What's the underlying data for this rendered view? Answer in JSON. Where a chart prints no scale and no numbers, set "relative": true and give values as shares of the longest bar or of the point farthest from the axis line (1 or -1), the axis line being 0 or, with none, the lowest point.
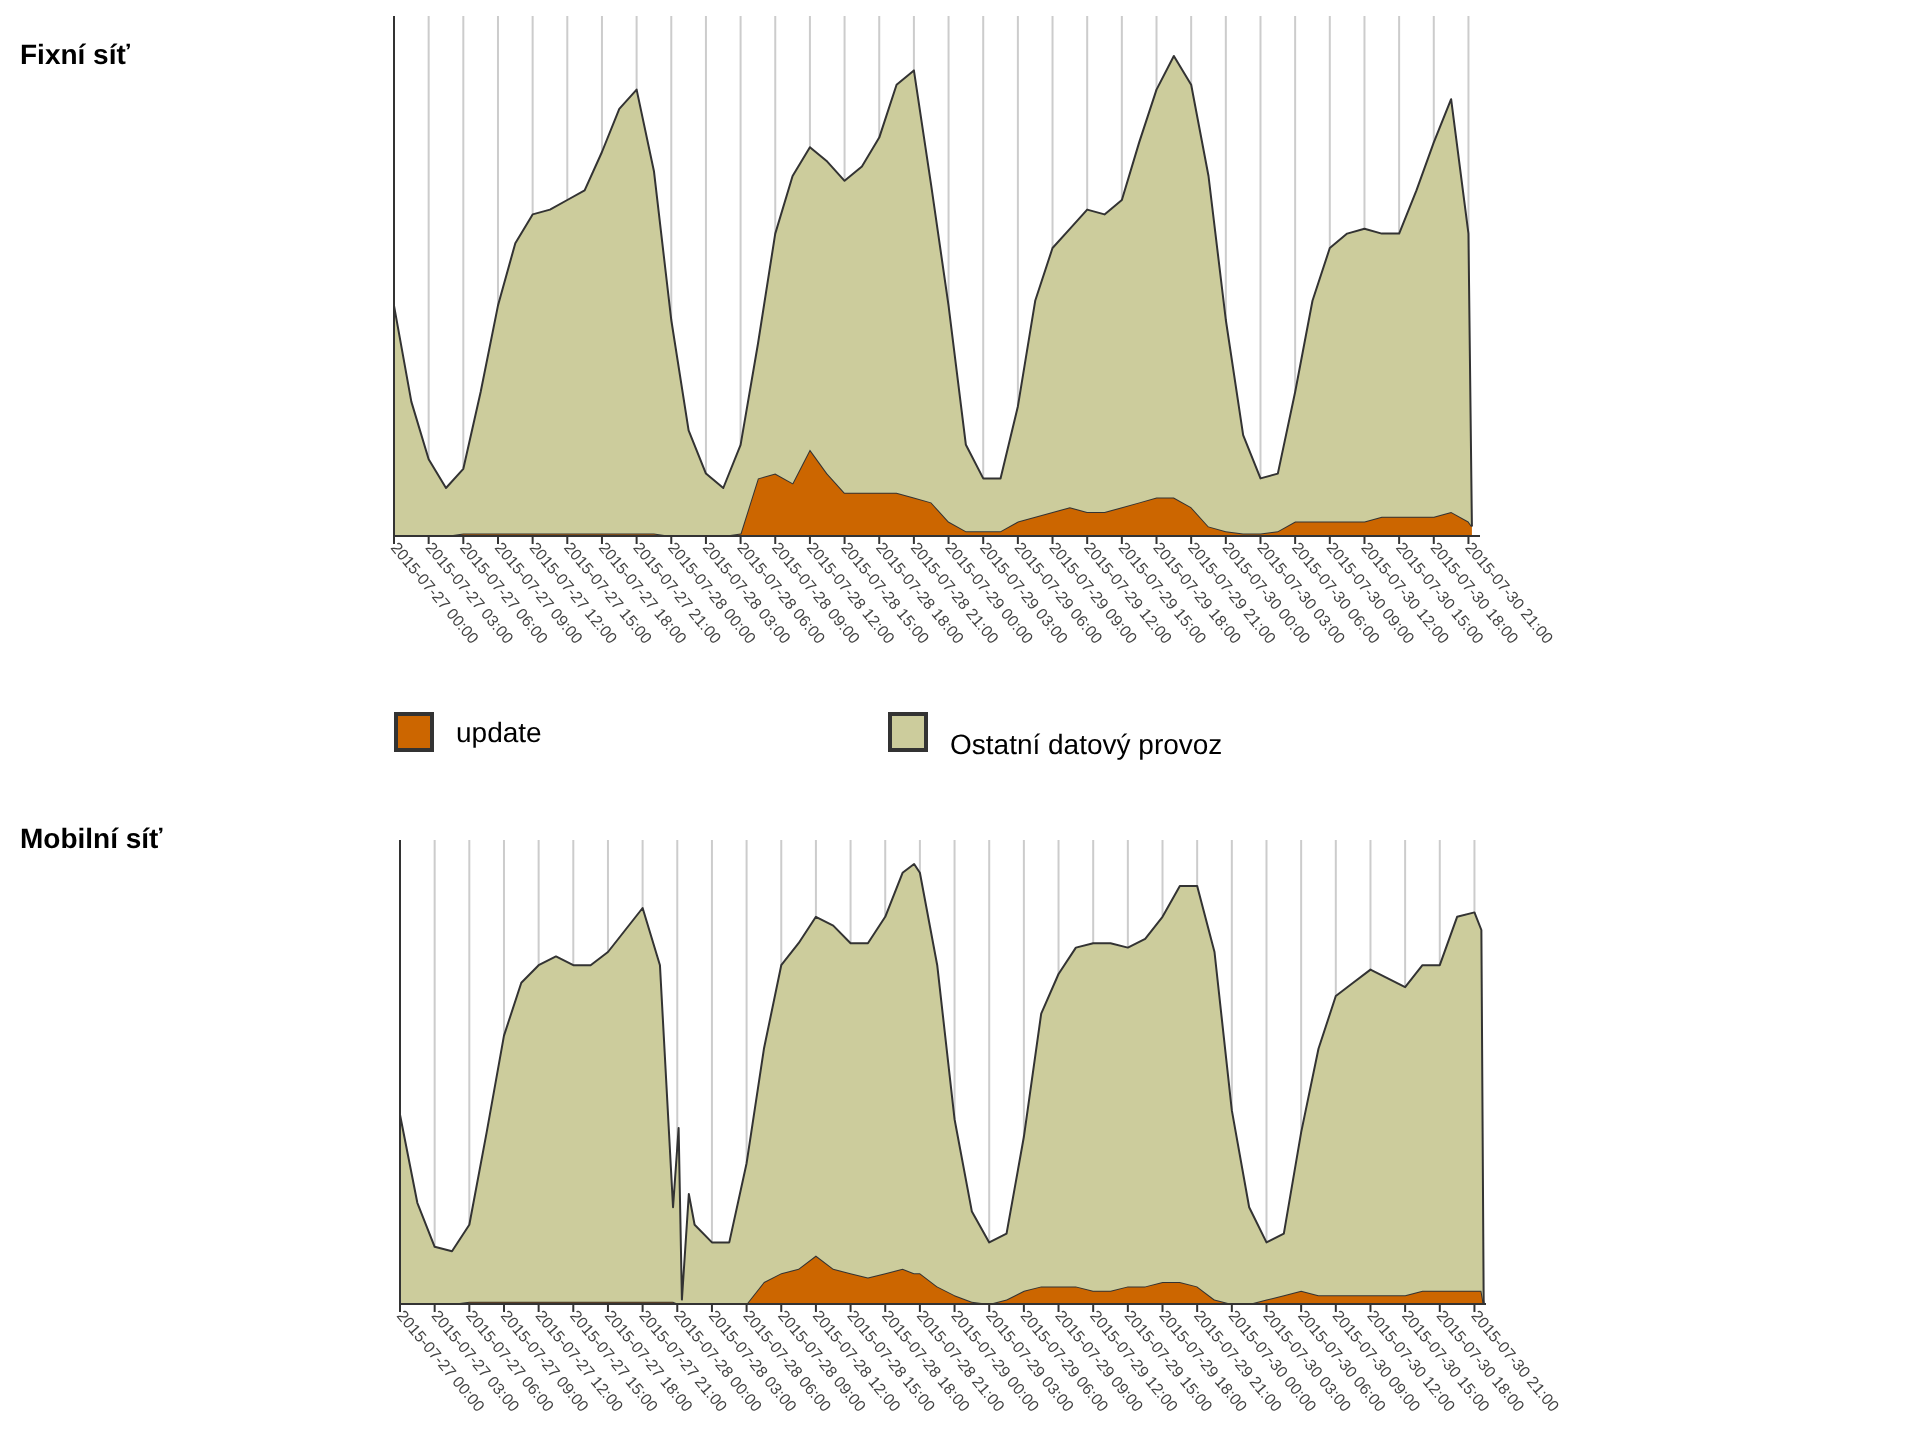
{
  "chart_data": [
    {
      "type": "area",
      "annotations": [
        "Fixní síť"
      ],
      "relative": true,
      "stacked": true,
      "grid": "x",
      "legend": "bottom",
      "xlim": [
        "2015-07-27T00:00",
        "2015-07-30T22:00"
      ],
      "xticks": [
        {
          "value": "2015-07-27T00:00",
          "label": "2015-07-27 00:00"
        },
        {
          "value": "2015-07-27T03:00",
          "label": "2015-07-27 03:00"
        },
        {
          "value": "2015-07-27T06:00",
          "label": "2015-07-27 06:00"
        },
        {
          "value": "2015-07-27T09:00",
          "label": "2015-07-27 09:00"
        },
        {
          "value": "2015-07-27T12:00",
          "label": "2015-07-27 12:00"
        },
        {
          "value": "2015-07-27T15:00",
          "label": "2015-07-27 15:00"
        },
        {
          "value": "2015-07-27T18:00",
          "label": "2015-07-27 18:00"
        },
        {
          "value": "2015-07-27T21:00",
          "label": "2015-07-27 21:00"
        },
        {
          "value": "2015-07-28T00:00",
          "label": "2015-07-28 00:00"
        },
        {
          "value": "2015-07-28T03:00",
          "label": "2015-07-28 03:00"
        },
        {
          "value": "2015-07-28T06:00",
          "label": "2015-07-28 06:00"
        },
        {
          "value": "2015-07-28T09:00",
          "label": "2015-07-28 09:00"
        },
        {
          "value": "2015-07-28T12:00",
          "label": "2015-07-28 12:00"
        },
        {
          "value": "2015-07-28T15:00",
          "label": "2015-07-28 15:00"
        },
        {
          "value": "2015-07-28T18:00",
          "label": "2015-07-28 18:00"
        },
        {
          "value": "2015-07-28T21:00",
          "label": "2015-07-28 21:00"
        },
        {
          "value": "2015-07-29T00:00",
          "label": "2015-07-29 00:00"
        },
        {
          "value": "2015-07-29T03:00",
          "label": "2015-07-29 03:00"
        },
        {
          "value": "2015-07-29T06:00",
          "label": "2015-07-29 06:00"
        },
        {
          "value": "2015-07-29T09:00",
          "label": "2015-07-29 09:00"
        },
        {
          "value": "2015-07-29T12:00",
          "label": "2015-07-29 12:00"
        },
        {
          "value": "2015-07-29T15:00",
          "label": "2015-07-29 15:00"
        },
        {
          "value": "2015-07-29T18:00",
          "label": "2015-07-29 18:00"
        },
        {
          "value": "2015-07-29T21:00",
          "label": "2015-07-29 21:00"
        },
        {
          "value": "2015-07-30T00:00",
          "label": "2015-07-30 00:00"
        },
        {
          "value": "2015-07-30T03:00",
          "label": "2015-07-30 03:00"
        },
        {
          "value": "2015-07-30T06:00",
          "label": "2015-07-30 06:00"
        },
        {
          "value": "2015-07-30T09:00",
          "label": "2015-07-30 09:00"
        },
        {
          "value": "2015-07-30T12:00",
          "label": "2015-07-30 12:00"
        },
        {
          "value": "2015-07-30T15:00",
          "label": "2015-07-30 15:00"
        },
        {
          "value": "2015-07-30T18:00",
          "label": "2015-07-30 18:00"
        },
        {
          "value": "2015-07-30T21:00",
          "label": "2015-07-30 21:00"
        }
      ],
      "x": [
        "2015-07-27T00:00",
        "2015-07-27T01:30",
        "2015-07-27T03:00",
        "2015-07-27T04:30",
        "2015-07-27T06:00",
        "2015-07-27T07:30",
        "2015-07-27T09:00",
        "2015-07-27T10:30",
        "2015-07-27T12:00",
        "2015-07-27T13:30",
        "2015-07-27T15:00",
        "2015-07-27T16:30",
        "2015-07-27T18:00",
        "2015-07-27T19:30",
        "2015-07-27T21:00",
        "2015-07-27T22:30",
        "2015-07-28T00:00",
        "2015-07-28T01:30",
        "2015-07-28T03:00",
        "2015-07-28T04:30",
        "2015-07-28T06:00",
        "2015-07-28T07:30",
        "2015-07-28T09:00",
        "2015-07-28T10:30",
        "2015-07-28T12:00",
        "2015-07-28T13:30",
        "2015-07-28T15:00",
        "2015-07-28T16:30",
        "2015-07-28T18:00",
        "2015-07-28T19:30",
        "2015-07-28T21:00",
        "2015-07-28T22:30",
        "2015-07-29T00:00",
        "2015-07-29T01:30",
        "2015-07-29T03:00",
        "2015-07-29T04:30",
        "2015-07-29T06:00",
        "2015-07-29T07:30",
        "2015-07-29T09:00",
        "2015-07-29T10:30",
        "2015-07-29T12:00",
        "2015-07-29T13:30",
        "2015-07-29T15:00",
        "2015-07-29T16:30",
        "2015-07-29T18:00",
        "2015-07-29T19:30",
        "2015-07-29T21:00",
        "2015-07-29T22:30",
        "2015-07-30T00:00",
        "2015-07-30T01:30",
        "2015-07-30T03:00",
        "2015-07-30T04:30",
        "2015-07-30T06:00",
        "2015-07-30T07:30",
        "2015-07-30T09:00",
        "2015-07-30T10:30",
        "2015-07-30T12:00",
        "2015-07-30T13:30",
        "2015-07-30T15:00",
        "2015-07-30T16:30",
        "2015-07-30T18:00",
        "2015-07-30T19:30",
        "2015-07-30T21:00",
        "2015-07-30T21:18"
      ],
      "series": [
        {
          "name": "update",
          "color": "#cc6600",
          "values": [
            0,
            0,
            0,
            0,
            0.005,
            0.005,
            0.005,
            0.005,
            0.005,
            0.005,
            0.005,
            0.005,
            0.005,
            0.005,
            0.005,
            0.005,
            0,
            0,
            0,
            0,
            0.005,
            0.12,
            0.13,
            0.11,
            0.18,
            0.13,
            0.09,
            0.09,
            0.09,
            0.09,
            0.08,
            0.07,
            0.03,
            0.01,
            0.01,
            0.01,
            0.03,
            0.04,
            0.05,
            0.06,
            0.05,
            0.05,
            0.06,
            0.07,
            0.08,
            0.08,
            0.06,
            0.02,
            0.01,
            0.005,
            0.005,
            0.01,
            0.03,
            0.03,
            0.03,
            0.03,
            0.03,
            0.04,
            0.04,
            0.04,
            0.04,
            0.05,
            0.03,
            0.02
          ]
        },
        {
          "name": "Ostatní datový provoz",
          "color": "#cccc9c",
          "values": [
            0.48,
            0.28,
            0.16,
            0.1,
            0.135,
            0.295,
            0.475,
            0.605,
            0.665,
            0.675,
            0.695,
            0.715,
            0.795,
            0.885,
            0.925,
            0.755,
            0.45,
            0.22,
            0.13,
            0.1,
            0.185,
            0.28,
            0.5,
            0.64,
            0.63,
            0.65,
            0.65,
            0.68,
            0.74,
            0.85,
            0.89,
            0.66,
            0.45,
            0.18,
            0.11,
            0.11,
            0.24,
            0.45,
            0.55,
            0.58,
            0.63,
            0.62,
            0.64,
            0.75,
            0.85,
            0.92,
            0.88,
            0.73,
            0.44,
            0.205,
            0.115,
            0.12,
            0.27,
            0.46,
            0.57,
            0.6,
            0.61,
            0.59,
            0.59,
            0.68,
            0.78,
            0.86,
            0.6,
            0
          ]
        }
      ]
    },
    {
      "type": "area",
      "annotations": [
        "Mobilní síť"
      ],
      "relative": true,
      "stacked": true,
      "grid": "x",
      "xlim": [
        "2015-07-27T00:00",
        "2015-07-30T22:00"
      ],
      "xticks": [
        {
          "value": "2015-07-27T00:00",
          "label": "2015-07-27 00:00"
        },
        {
          "value": "2015-07-27T03:00",
          "label": "2015-07-27 03:00"
        },
        {
          "value": "2015-07-27T06:00",
          "label": "2015-07-27 06:00"
        },
        {
          "value": "2015-07-27T09:00",
          "label": "2015-07-27 09:00"
        },
        {
          "value": "2015-07-27T12:00",
          "label": "2015-07-27 12:00"
        },
        {
          "value": "2015-07-27T15:00",
          "label": "2015-07-27 15:00"
        },
        {
          "value": "2015-07-27T18:00",
          "label": "2015-07-27 18:00"
        },
        {
          "value": "2015-07-27T21:00",
          "label": "2015-07-27 21:00"
        },
        {
          "value": "2015-07-28T00:00",
          "label": "2015-07-28 00:00"
        },
        {
          "value": "2015-07-28T03:00",
          "label": "2015-07-28 03:00"
        },
        {
          "value": "2015-07-28T06:00",
          "label": "2015-07-28 06:00"
        },
        {
          "value": "2015-07-28T09:00",
          "label": "2015-07-28 09:00"
        },
        {
          "value": "2015-07-28T12:00",
          "label": "2015-07-28 12:00"
        },
        {
          "value": "2015-07-28T15:00",
          "label": "2015-07-28 15:00"
        },
        {
          "value": "2015-07-28T18:00",
          "label": "2015-07-28 18:00"
        },
        {
          "value": "2015-07-28T21:00",
          "label": "2015-07-28 21:00"
        },
        {
          "value": "2015-07-29T00:00",
          "label": "2015-07-29 00:00"
        },
        {
          "value": "2015-07-29T03:00",
          "label": "2015-07-29 03:00"
        },
        {
          "value": "2015-07-29T06:00",
          "label": "2015-07-29 06:00"
        },
        {
          "value": "2015-07-29T09:00",
          "label": "2015-07-29 09:00"
        },
        {
          "value": "2015-07-29T12:00",
          "label": "2015-07-29 12:00"
        },
        {
          "value": "2015-07-29T15:00",
          "label": "2015-07-29 15:00"
        },
        {
          "value": "2015-07-29T18:00",
          "label": "2015-07-29 18:00"
        },
        {
          "value": "2015-07-29T21:00",
          "label": "2015-07-29 21:00"
        },
        {
          "value": "2015-07-30T00:00",
          "label": "2015-07-30 00:00"
        },
        {
          "value": "2015-07-30T03:00",
          "label": "2015-07-30 03:00"
        },
        {
          "value": "2015-07-30T06:00",
          "label": "2015-07-30 06:00"
        },
        {
          "value": "2015-07-30T09:00",
          "label": "2015-07-30 09:00"
        },
        {
          "value": "2015-07-30T12:00",
          "label": "2015-07-30 12:00"
        },
        {
          "value": "2015-07-30T15:00",
          "label": "2015-07-30 15:00"
        },
        {
          "value": "2015-07-30T18:00",
          "label": "2015-07-30 18:00"
        },
        {
          "value": "2015-07-30T21:00",
          "label": "2015-07-30 21:00"
        }
      ],
      "x": [
        "2015-07-27T00:00",
        "2015-07-27T01:30",
        "2015-07-27T03:00",
        "2015-07-27T04:30",
        "2015-07-27T06:00",
        "2015-07-27T07:30",
        "2015-07-27T09:00",
        "2015-07-27T10:30",
        "2015-07-27T12:00",
        "2015-07-27T13:30",
        "2015-07-27T15:00",
        "2015-07-27T16:30",
        "2015-07-27T18:00",
        "2015-07-27T19:30",
        "2015-07-27T21:00",
        "2015-07-27T22:30",
        "2015-07-27T23:38",
        "2015-07-28T00:07",
        "2015-07-28T00:24",
        "2015-07-28T01:00",
        "2015-07-28T01:30",
        "2015-07-28T03:00",
        "2015-07-28T04:30",
        "2015-07-28T06:00",
        "2015-07-28T07:30",
        "2015-07-28T09:00",
        "2015-07-28T10:30",
        "2015-07-28T12:00",
        "2015-07-28T13:30",
        "2015-07-28T15:00",
        "2015-07-28T16:30",
        "2015-07-28T18:00",
        "2015-07-28T19:30",
        "2015-07-28T20:30",
        "2015-07-28T21:00",
        "2015-07-28T22:30",
        "2015-07-29T00:00",
        "2015-07-29T01:30",
        "2015-07-29T03:00",
        "2015-07-29T04:30",
        "2015-07-29T06:00",
        "2015-07-29T07:30",
        "2015-07-29T09:00",
        "2015-07-29T10:30",
        "2015-07-29T12:00",
        "2015-07-29T13:30",
        "2015-07-29T15:00",
        "2015-07-29T16:30",
        "2015-07-29T18:00",
        "2015-07-29T19:30",
        "2015-07-29T21:00",
        "2015-07-29T22:30",
        "2015-07-30T00:00",
        "2015-07-30T01:30",
        "2015-07-30T03:00",
        "2015-07-30T04:30",
        "2015-07-30T06:00",
        "2015-07-30T07:30",
        "2015-07-30T09:00",
        "2015-07-30T10:30",
        "2015-07-30T12:00",
        "2015-07-30T13:30",
        "2015-07-30T15:00",
        "2015-07-30T16:30",
        "2015-07-30T18:00",
        "2015-07-30T19:30",
        "2015-07-30T21:00",
        "2015-07-30T21:36",
        "2015-07-30T21:48"
      ],
      "series": [
        {
          "color": "#cc6600",
          "values": [
            0,
            0,
            0,
            0,
            0.005,
            0.005,
            0.005,
            0.005,
            0.005,
            0.005,
            0.005,
            0.005,
            0.005,
            0.005,
            0.005,
            0.005,
            0.005,
            0,
            0,
            0,
            0,
            0,
            0,
            0,
            0.05,
            0.07,
            0.08,
            0.11,
            0.08,
            0.07,
            0.06,
            0.07,
            0.08,
            0.07,
            0.07,
            0.04,
            0.02,
            0.005,
            0,
            0.01,
            0.03,
            0.04,
            0.04,
            0.04,
            0.03,
            0.03,
            0.04,
            0.04,
            0.05,
            0.05,
            0.04,
            0.01,
            0,
            0,
            0.01,
            0.02,
            0.03,
            0.02,
            0.02,
            0.02,
            0.02,
            0.02,
            0.02,
            0.03,
            0.03,
            0.03,
            0.03,
            0.03,
            0
          ]
        },
        {
          "color": "#cccc9c",
          "values": [
            0.43,
            0.23,
            0.13,
            0.12,
            0.175,
            0.385,
            0.605,
            0.725,
            0.765,
            0.785,
            0.765,
            0.765,
            0.795,
            0.845,
            0.895,
            0.765,
            0.215,
            0.4,
            0.01,
            0.25,
            0.18,
            0.14,
            0.14,
            0.32,
            0.53,
            0.7,
            0.74,
            0.77,
            0.78,
            0.75,
            0.76,
            0.81,
            0.9,
            0.93,
            0.91,
            0.73,
            0.4,
            0.205,
            0.14,
            0.15,
            0.35,
            0.62,
            0.71,
            0.77,
            0.79,
            0.79,
            0.77,
            0.79,
            0.83,
            0.9,
            0.91,
            0.79,
            0.44,
            0.22,
            0.13,
            0.14,
            0.36,
            0.56,
            0.68,
            0.71,
            0.74,
            0.72,
            0.7,
            0.74,
            0.74,
            0.85,
            0.86,
            0.82,
            0
          ]
        }
      ]
    }
  ]
}
